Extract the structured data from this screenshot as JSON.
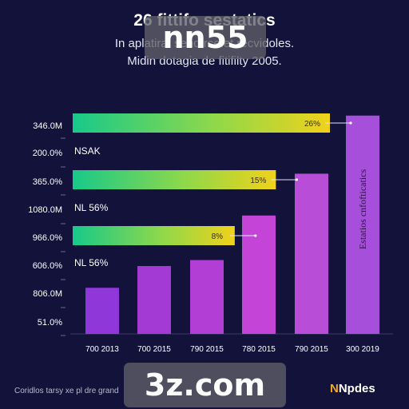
{
  "chart_data": {
    "type": "bar",
    "title": "26 fittifo sestatics",
    "subtitle_1": "In aplatirat send rcefet recvidoles.",
    "subtitle_2": "Midin dotagia de fitifilty 2005.",
    "categories": [
      "700 2013",
      "700 2015",
      "790 2015",
      "780 2015",
      "790 2015",
      "300 2019"
    ],
    "series": [
      {
        "values": [
          85,
          125,
          136,
          218,
          295,
          402
        ],
        "colors": [
          "#8f37d8",
          "#a33ad4",
          "#b23ed6",
          "#c544d8",
          "#b84ed8",
          "#a64fdb"
        ]
      }
    ],
    "y_tick_labels": [
      "346.0M",
      "200.0%",
      "365.0%",
      "1080.0M",
      "966.0%",
      "606.0%",
      "806.0M",
      "51.0%"
    ],
    "inline_labels": [
      "NSAK",
      "NL 56%",
      "NL 56%"
    ],
    "rotated_bar_label": "Estatios cnfofticatics",
    "bands": [
      {
        "label": "26%",
        "fraction": 1.0
      },
      {
        "label": "15%",
        "fraction": 0.79
      },
      {
        "label": "8%",
        "fraction": 0.63
      }
    ],
    "grid": false,
    "legend": "none"
  },
  "footer": {
    "note": "Coridlos tarsy xe pl dre grand",
    "brand_accent": "N",
    "brand_rest": "Npdes"
  },
  "watermark": {
    "top": "nn55",
    "bottom": "3z.com"
  }
}
